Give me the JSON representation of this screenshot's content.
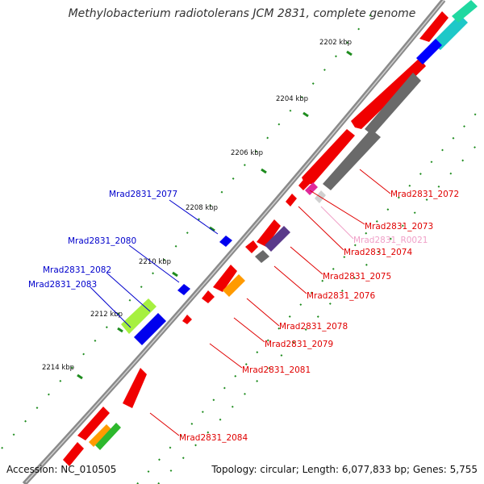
{
  "title": "Methylobacterium radiotolerans JCM 2831, complete genome",
  "footer": {
    "accession": "Accession: NC_010505",
    "summary": "Topology: circular; Length: 6,077,833 bp; Genes: 5,755"
  },
  "colors": {
    "backbone": "#7f7f7f",
    "ticks": "#1e8c1e",
    "label_forward": "#0000cc",
    "label_reverse": "#e00000",
    "label_rna": "#f0a0c8"
  },
  "ticks": [
    "2202 kbp",
    "2204 kbp",
    "2206 kbp",
    "2208 kbp",
    "2210 kbp",
    "2212 kbp",
    "2214 kbp"
  ],
  "labels": {
    "l2072": "Mrad2831_2072",
    "l2073": "Mrad2831_2073",
    "lR0021": "Mrad2831_R0021",
    "l2074": "Mrad2831_2074",
    "l2075": "Mrad2831_2075",
    "l2076": "Mrad2831_2076",
    "l2078": "Mrad2831_2078",
    "l2079": "Mrad2831_2079",
    "l2081": "Mrad2831_2081",
    "l2084": "Mrad2831_2084",
    "l2077": "Mrad2831_2077",
    "l2080": "Mrad2831_2080",
    "l2082": "Mrad2831_2082",
    "l2083": "Mrad2831_2083"
  }
}
